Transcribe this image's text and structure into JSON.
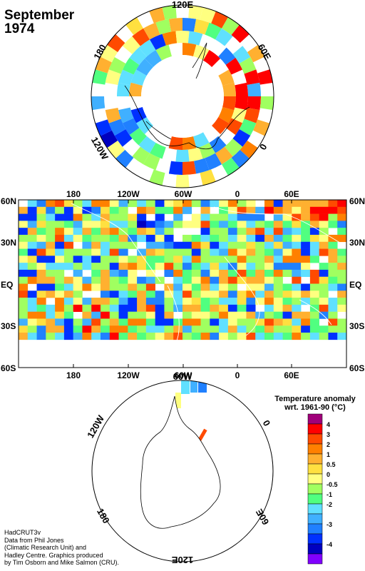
{
  "title": {
    "month": "September",
    "year": "1974"
  },
  "north_polar": {
    "labels": {
      "top": "120E",
      "right_upper": "60E",
      "right": "0",
      "left_upper": "180",
      "left_lower": "120W"
    }
  },
  "global_map": {
    "lat_labels": [
      "60N",
      "30N",
      "EQ",
      "30S",
      "60S"
    ],
    "lon_labels": [
      "180",
      "120W",
      "60W",
      "0",
      "60E"
    ]
  },
  "south_polar": {
    "labels": {
      "top": "60W",
      "left_upper": "120W",
      "right_upper": "0",
      "left_lower": "180",
      "right_lower": "60E",
      "bottom": "120E"
    }
  },
  "legend": {
    "title_line1": "Temperature anomaly",
    "title_line2": "wrt. 1961-90  (°C)",
    "colors": [
      "#a0007a",
      "#ff0000",
      "#ff4a00",
      "#ff8000",
      "#ffb030",
      "#ffe040",
      "#ffff80",
      "#a0ff60",
      "#50ff80",
      "#60e0ff",
      "#40b0ff",
      "#2080ff",
      "#0030ff",
      "#0000c0",
      "#8000ff"
    ],
    "labels": [
      "4",
      "3",
      "2",
      "1",
      "0.5",
      "0",
      "-0.5",
      "-1",
      "-2",
      "-3",
      "-4"
    ]
  },
  "credits": [
    "HadCRUT3v",
    "Data from Phil Jones",
    "(Climatic Research Unit) and",
    "Hadley Centre.  Graphics produced",
    "by Tim Osborn and Mike Salmon (CRU)."
  ]
}
